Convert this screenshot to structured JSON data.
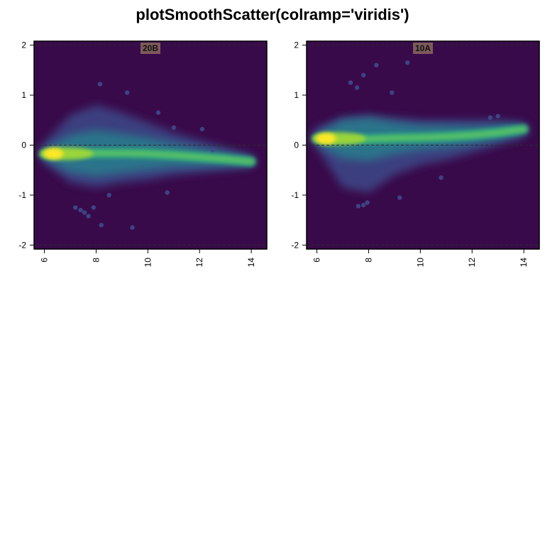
{
  "title": "plotSmoothScatter(colramp='viridis')",
  "colors": {
    "viridis": [
      "#440154",
      "#482878",
      "#3e4a89",
      "#31688e",
      "#26828e",
      "#1f9e89",
      "#35b779",
      "#6dcd59",
      "#b4de2c",
      "#fde725"
    ],
    "background": "#390a4a",
    "label_fill": "#7d5a5a",
    "reference_line": "#2b2b2b"
  },
  "chart_data": [
    {
      "type": "scatter",
      "panel_label": "20B",
      "xlim": [
        5.6,
        14.6
      ],
      "ylim": [
        -2.08,
        2.08
      ],
      "xticks": [
        6,
        8,
        10,
        12,
        14
      ],
      "yticks": [
        -2,
        -1,
        0,
        1,
        2
      ],
      "reference_lines_y": [
        -2,
        0,
        2
      ],
      "xlabel": "",
      "ylabel": "",
      "trend": [
        {
          "x": 6.0,
          "y": -0.18
        },
        {
          "x": 7.0,
          "y": -0.17
        },
        {
          "x": 8.0,
          "y": -0.16
        },
        {
          "x": 9.0,
          "y": -0.16
        },
        {
          "x": 10.0,
          "y": -0.17
        },
        {
          "x": 11.0,
          "y": -0.2
        },
        {
          "x": 12.0,
          "y": -0.24
        },
        {
          "x": 13.0,
          "y": -0.28
        },
        {
          "x": 14.0,
          "y": -0.33
        }
      ],
      "spread": [
        {
          "x": 6.0,
          "lo": -0.35,
          "hi": 0.05
        },
        {
          "x": 7.0,
          "lo": -0.75,
          "hi": 0.6
        },
        {
          "x": 8.0,
          "lo": -0.85,
          "hi": 0.8
        },
        {
          "x": 9.0,
          "lo": -0.75,
          "hi": 0.65
        },
        {
          "x": 10.0,
          "lo": -0.7,
          "hi": 0.45
        },
        {
          "x": 11.0,
          "lo": -0.6,
          "hi": 0.25
        },
        {
          "x": 12.0,
          "lo": -0.55,
          "hi": 0.1
        },
        {
          "x": 13.0,
          "lo": -0.5,
          "hi": -0.05
        },
        {
          "x": 14.0,
          "lo": -0.45,
          "hi": -0.2
        }
      ],
      "hotspot": {
        "x": 6.35,
        "y": -0.17
      },
      "spike": {
        "x": 9.6,
        "y_from": -0.1,
        "y_to": -0.65
      },
      "outliers": [
        {
          "x": 8.2,
          "y": -1.6
        },
        {
          "x": 9.4,
          "y": -1.65
        },
        {
          "x": 7.4,
          "y": -1.3
        },
        {
          "x": 7.55,
          "y": -1.35
        },
        {
          "x": 7.7,
          "y": -1.42
        },
        {
          "x": 7.9,
          "y": -1.25
        },
        {
          "x": 7.2,
          "y": -1.25
        },
        {
          "x": 8.5,
          "y": -1.0
        },
        {
          "x": 10.4,
          "y": 0.65
        },
        {
          "x": 9.2,
          "y": 1.05
        },
        {
          "x": 8.15,
          "y": 1.22
        },
        {
          "x": 10.75,
          "y": -0.95
        },
        {
          "x": 11.0,
          "y": 0.35
        },
        {
          "x": 12.1,
          "y": 0.32
        },
        {
          "x": 12.5,
          "y": -0.1
        }
      ]
    },
    {
      "type": "scatter",
      "panel_label": "10A",
      "xlim": [
        5.6,
        14.6
      ],
      "ylim": [
        -2.08,
        2.08
      ],
      "xticks": [
        6,
        8,
        10,
        12,
        14
      ],
      "yticks": [
        -2,
        -1,
        0,
        1,
        2
      ],
      "reference_lines_y": [
        -2,
        0,
        2
      ],
      "xlabel": "",
      "ylabel": "",
      "trend": [
        {
          "x": 6.0,
          "y": 0.13
        },
        {
          "x": 7.0,
          "y": 0.12
        },
        {
          "x": 8.0,
          "y": 0.12
        },
        {
          "x": 9.0,
          "y": 0.14
        },
        {
          "x": 10.0,
          "y": 0.15
        },
        {
          "x": 11.0,
          "y": 0.17
        },
        {
          "x": 12.0,
          "y": 0.2
        },
        {
          "x": 13.0,
          "y": 0.25
        },
        {
          "x": 14.0,
          "y": 0.32
        }
      ],
      "spread": [
        {
          "x": 6.0,
          "lo": -0.05,
          "hi": 0.35
        },
        {
          "x": 7.0,
          "lo": -0.85,
          "hi": 0.55
        },
        {
          "x": 8.0,
          "lo": -0.95,
          "hi": 0.6
        },
        {
          "x": 9.0,
          "lo": -0.6,
          "hi": 0.55
        },
        {
          "x": 10.0,
          "lo": -0.4,
          "hi": 0.5
        },
        {
          "x": 11.0,
          "lo": -0.3,
          "hi": 0.5
        },
        {
          "x": 12.0,
          "lo": -0.15,
          "hi": 0.5
        },
        {
          "x": 13.0,
          "lo": 0.0,
          "hi": 0.5
        },
        {
          "x": 14.0,
          "lo": 0.15,
          "hi": 0.45
        }
      ],
      "hotspot": {
        "x": 6.35,
        "y": 0.13
      },
      "spike": {
        "x": 9.5,
        "y_from": 0.15,
        "y_to": 0.7
      },
      "outliers": [
        {
          "x": 9.5,
          "y": 1.65
        },
        {
          "x": 8.3,
          "y": 1.6
        },
        {
          "x": 7.8,
          "y": 1.4
        },
        {
          "x": 7.3,
          "y": 1.25
        },
        {
          "x": 7.55,
          "y": 1.15
        },
        {
          "x": 8.9,
          "y": 1.05
        },
        {
          "x": 7.8,
          "y": -1.2
        },
        {
          "x": 7.6,
          "y": -1.22
        },
        {
          "x": 7.95,
          "y": -1.15
        },
        {
          "x": 9.2,
          "y": -1.05
        },
        {
          "x": 10.8,
          "y": -0.65
        },
        {
          "x": 12.7,
          "y": 0.55
        },
        {
          "x": 13.0,
          "y": 0.58
        }
      ]
    }
  ]
}
